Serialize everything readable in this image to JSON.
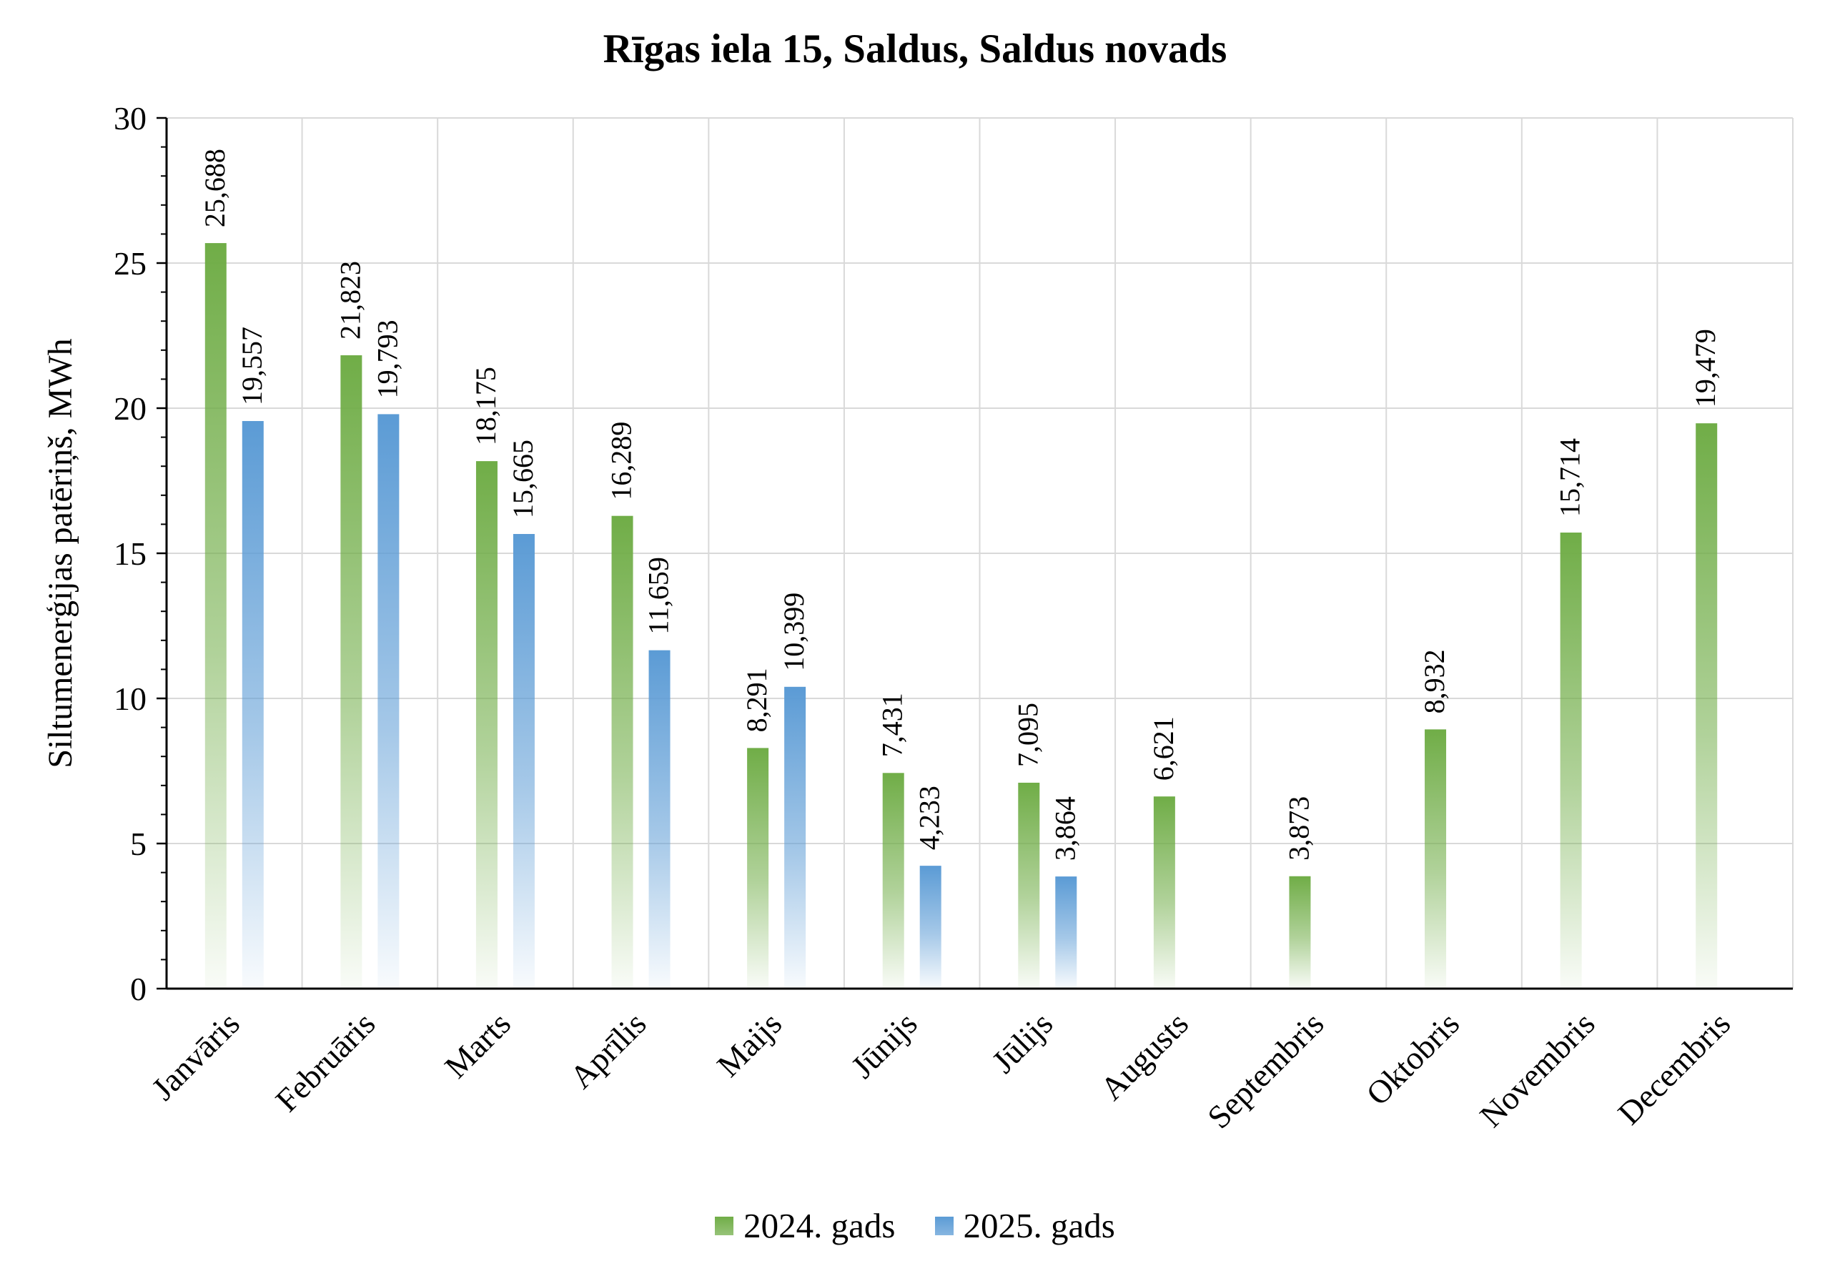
{
  "chart_data": {
    "type": "bar",
    "title": "Rīgas iela 15, Saldus, Saldus novads",
    "xlabel": "",
    "ylabel": "Siltumenerģijas patēriņš, MWh",
    "ylim": [
      0,
      30
    ],
    "yticks": [
      "0",
      "5",
      "10",
      "15",
      "20",
      "25",
      "30"
    ],
    "grid": true,
    "legend_position": "bottom",
    "categories": [
      "Janvāris",
      "Februāris",
      "Marts",
      "Aprīlis",
      "Maijs",
      "Jūnijs",
      "Jūlijs",
      "Augusts",
      "Septembris",
      "Oktobris",
      "Novembris",
      "Decembris"
    ],
    "series": [
      {
        "name": "2024. gads",
        "color": "#70ad47",
        "values": [
          25.688,
          21.823,
          18.175,
          16.289,
          8.291,
          7.431,
          7.095,
          6.621,
          3.873,
          8.932,
          15.714,
          19.479
        ],
        "labels": [
          "25,688",
          "21,823",
          "18,175",
          "16,289",
          "8,291",
          "7,431",
          "7,095",
          "6,621",
          "3,873",
          "8,932",
          "15,714",
          "19,479"
        ]
      },
      {
        "name": "2025. gads",
        "color": "#5b9bd5",
        "values": [
          19.557,
          19.793,
          15.665,
          11.659,
          10.399,
          4.233,
          3.864,
          null,
          null,
          null,
          null,
          null
        ],
        "labels": [
          "19,557",
          "19,793",
          "15,665",
          "11,659",
          "10,399",
          "4,233",
          "3,864",
          null,
          null,
          null,
          null,
          null
        ]
      }
    ]
  }
}
